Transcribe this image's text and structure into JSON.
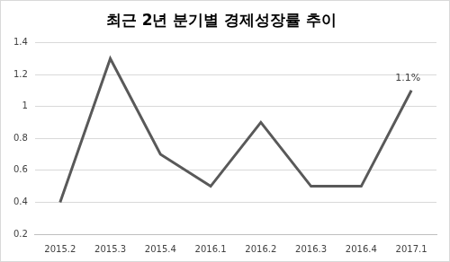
{
  "chart_data": {
    "type": "line",
    "title": "최근 2년 분기별 경제성장률 추이",
    "categories": [
      "2015.2",
      "2015.3",
      "2015.4",
      "2016.1",
      "2016.2",
      "2016.3",
      "2016.4",
      "2017.1"
    ],
    "values": [
      0.4,
      1.3,
      0.7,
      0.5,
      0.9,
      0.5,
      0.5,
      1.1
    ],
    "color": "#595959",
    "ylim": [
      0.2,
      1.4
    ],
    "yticks": [
      0.2,
      0.4,
      0.6,
      0.8,
      1,
      1.2,
      1.4
    ],
    "grid": true,
    "annotations": [
      {
        "text": "1.1%",
        "x": "2017.1",
        "y": 1.1
      }
    ]
  }
}
